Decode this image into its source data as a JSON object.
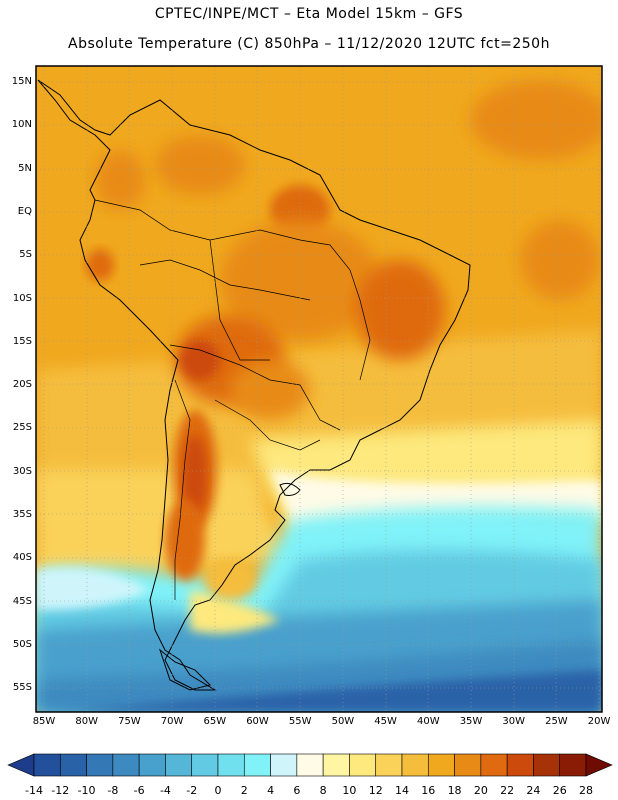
{
  "title": {
    "line1": "CPTEC/INPE/MCT –  Eta Model 15km – GFS",
    "line2": "Absolute Temperature (C) 850hPa – 11/12/2020 12UTC fct=250h"
  },
  "map": {
    "region": "South America",
    "lat_labels": [
      "15N",
      "10N",
      "5N",
      "EQ",
      "5S",
      "10S",
      "15S",
      "20S",
      "25S",
      "30S",
      "35S",
      "40S",
      "45S",
      "50S",
      "55S"
    ],
    "lon_labels": [
      "85W",
      "80W",
      "75W",
      "70W",
      "65W",
      "60W",
      "55W",
      "50W",
      "45W",
      "40W",
      "35W",
      "30W",
      "25W",
      "20W"
    ],
    "lat_range": [
      -58,
      16
    ],
    "lon_range": [
      -86,
      -20
    ]
  },
  "colorbar": {
    "levels": [
      "-14",
      "-12",
      "-10",
      "-8",
      "-6",
      "-4",
      "-2",
      "0",
      "2",
      "4",
      "6",
      "8",
      "10",
      "12",
      "14",
      "16",
      "18",
      "20",
      "22",
      "24",
      "26",
      "28"
    ],
    "colors": [
      "#1e3c8c",
      "#23509b",
      "#2a62a8",
      "#3478b5",
      "#3d8ac0",
      "#48a0cc",
      "#55b6d8",
      "#62cbe3",
      "#70dfee",
      "#80f2f8",
      "#cff5fb",
      "#fffbe6",
      "#fff5a3",
      "#fde97e",
      "#fad25a",
      "#f5bd3c",
      "#f0a81e",
      "#e88b16",
      "#df6a10",
      "#cc4a0c",
      "#a83208",
      "#8a1c06",
      "#6e0c04"
    ]
  }
}
